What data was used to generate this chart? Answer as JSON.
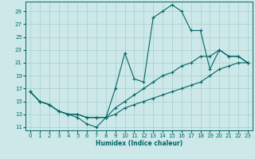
{
  "xlabel": "Humidex (Indice chaleur)",
  "bg_color": "#cde8e8",
  "grid_color": "#aacccc",
  "line_color": "#006666",
  "xlim": [
    -0.5,
    23.5
  ],
  "ylim": [
    10.5,
    30.5
  ],
  "xticks": [
    0,
    1,
    2,
    3,
    4,
    5,
    6,
    7,
    8,
    9,
    10,
    11,
    12,
    13,
    14,
    15,
    16,
    17,
    18,
    19,
    20,
    21,
    22,
    23
  ],
  "yticks": [
    11,
    13,
    15,
    17,
    19,
    21,
    23,
    25,
    27,
    29
  ],
  "lines": [
    {
      "x": [
        0,
        1,
        2,
        3,
        4,
        5,
        6,
        7,
        8,
        9,
        10,
        11,
        12,
        13,
        14,
        15,
        16,
        17,
        18,
        19,
        20,
        21,
        22,
        23
      ],
      "y": [
        16.5,
        15,
        14.5,
        13.5,
        13,
        12.5,
        11.5,
        11,
        12.5,
        17,
        22.5,
        18.5,
        18,
        28,
        29,
        30,
        29,
        26,
        26,
        20,
        23,
        22,
        22,
        21
      ]
    },
    {
      "x": [
        0,
        1,
        2,
        3,
        4,
        5,
        6,
        7,
        8,
        9,
        10,
        11,
        12,
        13,
        14,
        15,
        16,
        17,
        18,
        19,
        20,
        21,
        22,
        23
      ],
      "y": [
        16.5,
        15,
        14.5,
        13.5,
        13,
        13,
        12.5,
        12.5,
        12.5,
        13,
        14,
        14.5,
        15,
        15.5,
        16,
        16.5,
        17,
        17.5,
        18,
        19,
        20,
        20.5,
        21,
        21
      ]
    },
    {
      "x": [
        0,
        1,
        2,
        3,
        4,
        5,
        6,
        7,
        8,
        9,
        10,
        11,
        12,
        13,
        14,
        15,
        16,
        17,
        18,
        19,
        20,
        21,
        22,
        23
      ],
      "y": [
        16.5,
        15,
        14.5,
        13.5,
        13,
        13,
        12.5,
        12.5,
        12.5,
        14,
        15,
        16,
        17,
        18,
        19,
        19.5,
        20.5,
        21,
        22,
        22,
        23,
        22,
        22,
        21
      ]
    }
  ]
}
